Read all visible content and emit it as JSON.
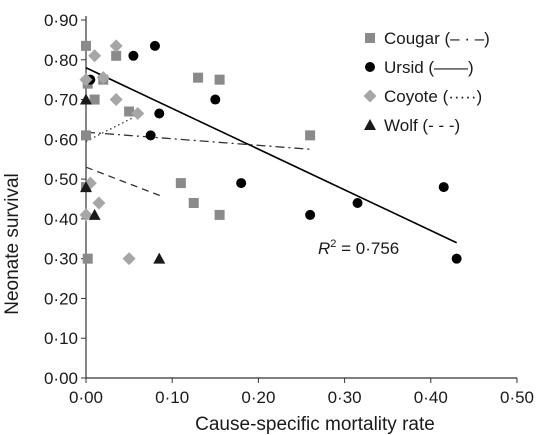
{
  "chart_data": {
    "type": "scatter",
    "xlabel": "Cause-specific mortality rate",
    "ylabel": "Neonate survival",
    "xlim": [
      0,
      0.5
    ],
    "ylim": [
      0,
      0.9
    ],
    "x_tick_labels": [
      "0·00",
      "0·10",
      "0·20",
      "0·30",
      "0·40",
      "0·50"
    ],
    "y_tick_labels": [
      "0·00",
      "0·10",
      "0·20",
      "0·30",
      "0·40",
      "0·50",
      "0·60",
      "0·70",
      "0·80",
      "0·90"
    ],
    "grid": false,
    "legend_position": "top-right",
    "annotation": {
      "r_symbol": "R",
      "r_sup": "2",
      "r_value": " = 0·756"
    },
    "series": [
      {
        "name": "Cougar (– · –)",
        "marker": "square",
        "color": "#8a8a8a",
        "line_style": "dashdot",
        "points": [
          [
            0.0,
            0.835
          ],
          [
            0.002,
            0.74
          ],
          [
            0.0,
            0.61
          ],
          [
            0.002,
            0.3
          ],
          [
            0.01,
            0.7
          ],
          [
            0.02,
            0.75
          ],
          [
            0.035,
            0.81
          ],
          [
            0.05,
            0.67
          ],
          [
            0.13,
            0.755
          ],
          [
            0.155,
            0.75
          ],
          [
            0.11,
            0.49
          ],
          [
            0.125,
            0.44
          ],
          [
            0.155,
            0.41
          ],
          [
            0.26,
            0.61
          ],
          [
            0.0,
            0.48
          ]
        ],
        "trend": [
          [
            0.0,
            0.618
          ],
          [
            0.26,
            0.575
          ]
        ]
      },
      {
        "name": "Ursid (——)",
        "marker": "circle",
        "color": "#000000",
        "line_style": "solid",
        "points": [
          [
            0.005,
            0.75
          ],
          [
            0.055,
            0.81
          ],
          [
            0.08,
            0.835
          ],
          [
            0.085,
            0.665
          ],
          [
            0.075,
            0.61
          ],
          [
            0.15,
            0.7
          ],
          [
            0.18,
            0.49
          ],
          [
            0.26,
            0.41
          ],
          [
            0.315,
            0.44
          ],
          [
            0.415,
            0.48
          ],
          [
            0.43,
            0.3
          ]
        ],
        "trend": [
          [
            0.0,
            0.78
          ],
          [
            0.43,
            0.34
          ]
        ]
      },
      {
        "name": "Coyote (·····)",
        "marker": "diamond",
        "color": "#a6a6a6",
        "line_style": "dotted",
        "points": [
          [
            0.0,
            0.75
          ],
          [
            0.0,
            0.41
          ],
          [
            0.005,
            0.49
          ],
          [
            0.01,
            0.81
          ],
          [
            0.02,
            0.755
          ],
          [
            0.035,
            0.835
          ],
          [
            0.035,
            0.7
          ],
          [
            0.015,
            0.44
          ],
          [
            0.05,
            0.3
          ],
          [
            0.06,
            0.665
          ]
        ],
        "trend": [
          [
            0.0,
            0.595
          ],
          [
            0.055,
            0.655
          ]
        ]
      },
      {
        "name": "Wolf (- - -)",
        "marker": "triangle",
        "color": "#1a1a1a",
        "line_style": "dashed",
        "points": [
          [
            0.0,
            0.7
          ],
          [
            0.0,
            0.48
          ],
          [
            0.01,
            0.41
          ],
          [
            0.085,
            0.3
          ]
        ],
        "trend": [
          [
            0.0,
            0.53
          ],
          [
            0.09,
            0.455
          ]
        ]
      }
    ]
  }
}
